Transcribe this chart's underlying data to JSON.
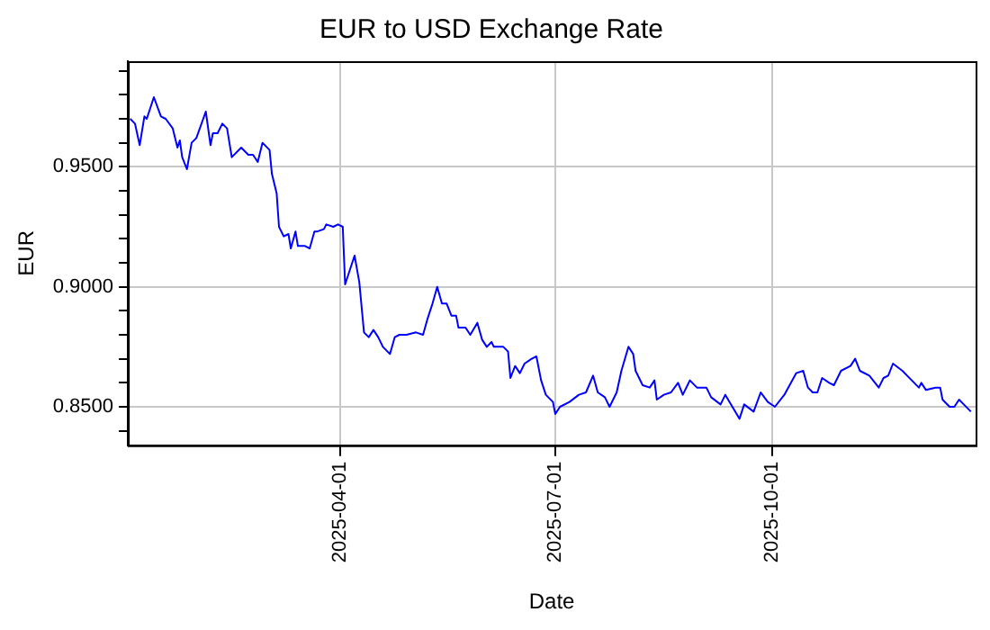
{
  "chart_data": {
    "type": "line",
    "title": "EUR to USD Exchange Rate",
    "xlabel": "Date",
    "ylabel": "EUR",
    "x": [
      "2025-01-02",
      "2025-01-04",
      "2025-01-06",
      "2025-01-08",
      "2025-01-09",
      "2025-01-12",
      "2025-01-15",
      "2025-01-17",
      "2025-01-20",
      "2025-01-22",
      "2025-01-23",
      "2025-01-24",
      "2025-01-26",
      "2025-01-28",
      "2025-01-30",
      "2025-02-03",
      "2025-02-05",
      "2025-02-06",
      "2025-02-08",
      "2025-02-10",
      "2025-02-12",
      "2025-02-14",
      "2025-02-18",
      "2025-02-21",
      "2025-02-23",
      "2025-02-25",
      "2025-02-27",
      "2025-03-02",
      "2025-03-03",
      "2025-03-05",
      "2025-03-06",
      "2025-03-08",
      "2025-03-10",
      "2025-03-11",
      "2025-03-13",
      "2025-03-14",
      "2025-03-17",
      "2025-03-19",
      "2025-03-21",
      "2025-03-22",
      "2025-03-25",
      "2025-03-26",
      "2025-03-29",
      "2025-03-31",
      "2025-04-02",
      "2025-04-03",
      "2025-04-05",
      "2025-04-07",
      "2025-04-09",
      "2025-04-11",
      "2025-04-13",
      "2025-04-15",
      "2025-04-17",
      "2025-04-19",
      "2025-04-22",
      "2025-04-24",
      "2025-04-26",
      "2025-04-29",
      "2025-05-03",
      "2025-05-06",
      "2025-05-08",
      "2025-05-10",
      "2025-05-12",
      "2025-05-14",
      "2025-05-16",
      "2025-05-18",
      "2025-05-20",
      "2025-05-21",
      "2025-05-24",
      "2025-05-26",
      "2025-05-29",
      "2025-05-31",
      "2025-06-02",
      "2025-06-04",
      "2025-06-05",
      "2025-06-09",
      "2025-06-11",
      "2025-06-12",
      "2025-06-14",
      "2025-06-16",
      "2025-06-18",
      "2025-06-21",
      "2025-06-23",
      "2025-06-25",
      "2025-06-27",
      "2025-06-30",
      "2025-07-01",
      "2025-07-03",
      "2025-07-07",
      "2025-07-11",
      "2025-07-14",
      "2025-07-17",
      "2025-07-19",
      "2025-07-22",
      "2025-07-24",
      "2025-07-27",
      "2025-07-29",
      "2025-08-01",
      "2025-08-03",
      "2025-08-04",
      "2025-08-07",
      "2025-08-10",
      "2025-08-12",
      "2025-08-13",
      "2025-08-16",
      "2025-08-19",
      "2025-08-22",
      "2025-08-24",
      "2025-08-27",
      "2025-08-30",
      "2025-09-02",
      "2025-09-03",
      "2025-09-05",
      "2025-09-09",
      "2025-09-11",
      "2025-09-14",
      "2025-09-17",
      "2025-09-19",
      "2025-09-23",
      "2025-09-26",
      "2025-09-29",
      "2025-10-02",
      "2025-10-06",
      "2025-10-11",
      "2025-10-14",
      "2025-10-16",
      "2025-10-18",
      "2025-10-20",
      "2025-10-22",
      "2025-10-25",
      "2025-10-27",
      "2025-10-30",
      "2025-11-03",
      "2025-11-05",
      "2025-11-07",
      "2025-11-11",
      "2025-11-15",
      "2025-11-17",
      "2025-11-19",
      "2025-11-21",
      "2025-11-25",
      "2025-11-27",
      "2025-11-30",
      "2025-12-02",
      "2025-12-03",
      "2025-12-05",
      "2025-12-09",
      "2025-12-11",
      "2025-12-12",
      "2025-12-15",
      "2025-12-17",
      "2025-12-19",
      "2025-12-21",
      "2025-12-24"
    ],
    "series": [
      {
        "color": "#0000ff",
        "values": [
          0.97,
          0.968,
          0.959,
          0.971,
          0.97,
          0.979,
          0.971,
          0.97,
          0.966,
          0.958,
          0.961,
          0.954,
          0.949,
          0.96,
          0.962,
          0.973,
          0.959,
          0.964,
          0.964,
          0.968,
          0.966,
          0.954,
          0.958,
          0.955,
          0.955,
          0.952,
          0.96,
          0.957,
          0.947,
          0.939,
          0.925,
          0.921,
          0.922,
          0.916,
          0.923,
          0.917,
          0.917,
          0.916,
          0.923,
          0.923,
          0.924,
          0.926,
          0.925,
          0.926,
          0.925,
          0.901,
          0.907,
          0.913,
          0.902,
          0.881,
          0.879,
          0.882,
          0.879,
          0.875,
          0.872,
          0.879,
          0.88,
          0.88,
          0.881,
          0.88,
          0.887,
          0.893,
          0.9,
          0.893,
          0.893,
          0.888,
          0.888,
          0.883,
          0.883,
          0.88,
          0.885,
          0.878,
          0.875,
          0.877,
          0.875,
          0.875,
          0.873,
          0.862,
          0.867,
          0.864,
          0.868,
          0.87,
          0.871,
          0.861,
          0.855,
          0.852,
          0.847,
          0.85,
          0.852,
          0.855,
          0.856,
          0.863,
          0.856,
          0.854,
          0.85,
          0.856,
          0.865,
          0.875,
          0.872,
          0.865,
          0.859,
          0.858,
          0.861,
          0.853,
          0.855,
          0.856,
          0.86,
          0.855,
          0.861,
          0.858,
          0.858,
          0.858,
          0.854,
          0.851,
          0.855,
          0.85,
          0.845,
          0.851,
          0.848,
          0.856,
          0.852,
          0.85,
          0.855,
          0.864,
          0.865,
          0.858,
          0.856,
          0.856,
          0.862,
          0.86,
          0.859,
          0.865,
          0.867,
          0.87,
          0.865,
          0.863,
          0.858,
          0.862,
          0.863,
          0.868,
          0.865,
          0.863,
          0.86,
          0.858,
          0.86,
          0.857,
          0.858,
          0.858,
          0.853,
          0.85,
          0.85,
          0.853,
          0.851,
          0.848
        ]
      }
    ],
    "xlim": [
      "2025-01-01",
      "2025-12-26"
    ],
    "xticks": [
      "2025-04-01",
      "2025-07-01",
      "2025-10-01"
    ],
    "ylim": [
      0.834,
      0.994
    ],
    "yticks": [
      {
        "value": 0.84,
        "label": null
      },
      {
        "value": 0.85,
        "label": "0.8500"
      },
      {
        "value": 0.86,
        "label": null
      },
      {
        "value": 0.87,
        "label": null
      },
      {
        "value": 0.88,
        "label": null
      },
      {
        "value": 0.89,
        "label": null
      },
      {
        "value": 0.9,
        "label": "0.9000"
      },
      {
        "value": 0.91,
        "label": null
      },
      {
        "value": 0.92,
        "label": null
      },
      {
        "value": 0.93,
        "label": null
      },
      {
        "value": 0.94,
        "label": null
      },
      {
        "value": 0.95,
        "label": "0.9500"
      },
      {
        "value": 0.96,
        "label": null
      },
      {
        "value": 0.97,
        "label": null
      },
      {
        "value": 0.98,
        "label": null
      },
      {
        "value": 0.99,
        "label": null
      }
    ],
    "grid": true,
    "legend": false,
    "marker": "none",
    "line_style": "solid"
  }
}
